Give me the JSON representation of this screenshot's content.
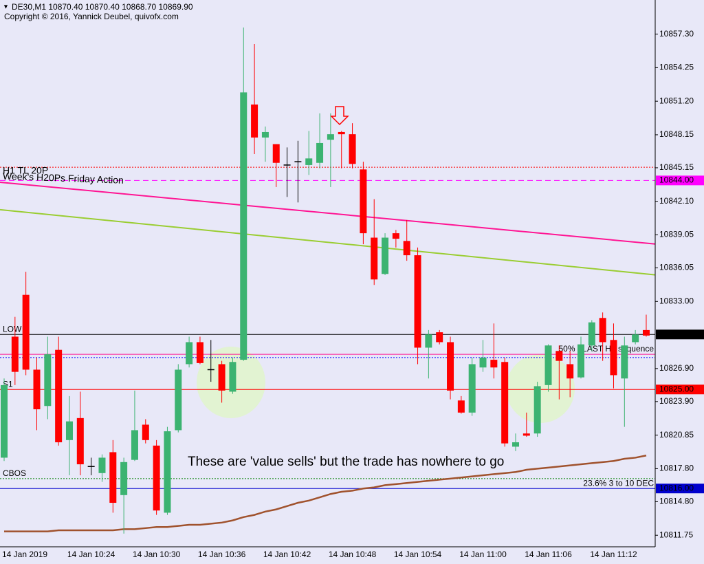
{
  "chart_data": {
    "type": "candlestick",
    "title": "DE30,M1  10870.40 10870.40 10868.70 10869.90",
    "subtitle": "Copyright © 2016, Yannick Deubel, quivofx.com",
    "annotations": [
      "These are 'value sells' but the trade has nowhere to go",
      "H1 TL 20P",
      "Week's H20Ps Friday Action"
    ],
    "background": "#e8e8f8",
    "up_color": "#3cb371",
    "down_color": "#ff0000",
    "categories": [
      "14 Jan 2019",
      null,
      null,
      null,
      null,
      null,
      null,
      null,
      "14 Jan 10:24",
      null,
      null,
      null,
      null,
      null,
      "14 Jan 10:30",
      null,
      null,
      null,
      null,
      null,
      "14 Jan 10:36",
      null,
      null,
      null,
      null,
      null,
      "14 Jan 10:42",
      null,
      null,
      null,
      null,
      null,
      "14 Jan 10:48",
      null,
      null,
      null,
      null,
      null,
      "14 Jan 10:54",
      null,
      null,
      null,
      null,
      null,
      "14 Jan 11:00",
      null,
      null,
      null,
      null,
      null,
      "14 Jan 11:06",
      null,
      null,
      null,
      null,
      null,
      "14 Jan 11:12",
      null,
      null,
      null
    ],
    "open": [
      10818.8,
      10829.8,
      10833.6,
      10826.8,
      10823.5,
      10828.6,
      10820.4,
      10822.4,
      10818.0,
      10817.4,
      10819.3,
      10815.4,
      10818.6,
      10821.8,
      10819.9,
      10813.8,
      10821.3,
      10827.3,
      10829.3,
      10826.8,
      10827.3,
      10824.8,
      10827.7,
      10850.9,
      10847.9,
      10847.3,
      10845.4,
      10845.7,
      10845.4,
      10845.6,
      10847.7,
      10848.4,
      10848.2,
      10845.0,
      10838.8,
      10835.5,
      10839.2,
      10838.5,
      10837.2,
      10828.8,
      10830.2,
      10829.3,
      10824.0,
      10822.9,
      10827.0,
      10827.7,
      10827.5,
      10819.8,
      10821.0,
      10821.0,
      10825.4,
      10828.5,
      10827.3,
      10826.1,
      10829.0,
      10831.5,
      10829.5,
      10826.0,
      10829.3,
      10830.4
    ],
    "high": [
      10826.0,
      10831.6,
      10835.7,
      10827.9,
      10829.8,
      10829.8,
      10824.4,
      10824.8,
      10818.8,
      10819.1,
      10820.4,
      10818.8,
      10824.9,
      10822.3,
      10820.4,
      10821.6,
      10827.3,
      10829.8,
      10829.8,
      10829.5,
      10827.6,
      10827.9,
      10857.9,
      10856.4,
      10848.9,
      10847.3,
      10847.0,
      10847.6,
      10848.5,
      10850.1,
      10850.1,
      10848.5,
      10849.2,
      10845.7,
      10842.3,
      10839.2,
      10839.5,
      10840.4,
      10837.9,
      10830.4,
      10830.4,
      10829.8,
      10824.4,
      10827.9,
      10829.5,
      10831.0,
      10827.9,
      10821.0,
      10822.9,
      10825.7,
      10829.1,
      10829.0,
      10828.5,
      10829.8,
      10831.3,
      10832.0,
      10831.0,
      10829.8,
      10830.4,
      10831.8
    ],
    "low": [
      10818.5,
      10825.4,
      10826.3,
      10821.3,
      10822.3,
      10819.9,
      10817.2,
      10817.2,
      10817.2,
      10816.6,
      10813.8,
      10811.9,
      10818.5,
      10820.1,
      10813.6,
      10813.6,
      10821.1,
      10827.0,
      10827.3,
      10825.7,
      10823.8,
      10824.6,
      10827.6,
      10846.4,
      10845.7,
      10843.4,
      10842.5,
      10842.0,
      10844.5,
      10845.1,
      10843.4,
      10845.1,
      10845.1,
      10838.2,
      10834.5,
      10835.4,
      10837.9,
      10836.7,
      10827.3,
      10826.0,
      10829.1,
      10824.1,
      10822.8,
      10822.6,
      10826.6,
      10826.0,
      10819.8,
      10819.4,
      10820.7,
      10820.7,
      10824.8,
      10824.1,
      10824.3,
      10826.0,
      10828.5,
      10827.6,
      10825.1,
      10821.6,
      10829.1,
      10829.8
    ],
    "close": [
      10825.4,
      10826.6,
      10826.8,
      10823.2,
      10828.2,
      10820.2,
      10822.1,
      10818.2,
      10818.0,
      10818.8,
      10814.7,
      10818.4,
      10821.3,
      10820.4,
      10814.0,
      10821.2,
      10826.8,
      10829.3,
      10827.4,
      10826.8,
      10824.9,
      10827.5,
      10852.0,
      10847.9,
      10848.4,
      10845.6,
      10845.4,
      10845.7,
      10846.0,
      10847.4,
      10848.2,
      10848.2,
      10845.5,
      10839.2,
      10835.0,
      10838.8,
      10838.7,
      10837.2,
      10828.8,
      10830.0,
      10829.3,
      10824.9,
      10822.9,
      10827.3,
      10827.9,
      10827.0,
      10820.1,
      10820.2,
      10820.8,
      10825.3,
      10829.0,
      10827.6,
      10826.0,
      10829.1,
      10831.1,
      10829.3,
      10826.3,
      10829.0,
      10830.0,
      10829.9
    ],
    "moving_average": {
      "color": "#a0522d",
      "values": [
        10812.1,
        10812.1,
        10812.1,
        10812.1,
        10812.1,
        10812.2,
        10812.2,
        10812.2,
        10812.2,
        10812.2,
        10812.2,
        10812.3,
        10812.3,
        10812.4,
        10812.5,
        10812.5,
        10812.6,
        10812.7,
        10812.7,
        10812.8,
        10812.9,
        10813.1,
        10813.4,
        10813.6,
        10813.9,
        10814.1,
        10814.4,
        10814.7,
        10814.9,
        10815.2,
        10815.5,
        10815.7,
        10815.8,
        10816.0,
        10816.1,
        10816.3,
        10816.4,
        10816.5,
        10816.6,
        10816.7,
        10816.8,
        10816.9,
        10817.0,
        10817.1,
        10817.2,
        10817.3,
        10817.4,
        10817.5,
        10817.7,
        10817.8,
        10817.9,
        10818.0,
        10818.1,
        10818.2,
        10818.3,
        10818.4,
        10818.5,
        10818.7,
        10818.8,
        10819.0
      ]
    },
    "trendlines": [
      {
        "color": "#ff1493",
        "values": [
          10843.8,
          10838.3
        ]
      },
      {
        "color": "#9acd32",
        "values": [
          10841.3,
          10835.5
        ]
      }
    ],
    "levels": [
      {
        "value": 10845.2,
        "color": "#ff0000",
        "style": "dotted"
      },
      {
        "value": 10844.0,
        "label": "10844.00",
        "color": "#ff00ff",
        "style": "dashed"
      },
      {
        "value": 10830.0,
        "label": "10830.00",
        "color": "#000000",
        "style": "solid",
        "tag": "LOW",
        "tag_side": "left"
      },
      {
        "value": 10828.2,
        "color": "#ff1493",
        "style": "solid",
        "tag": "50% - LAST H1 sequence",
        "tag_side": "right"
      },
      {
        "value": 10827.9,
        "color": "#0000ff",
        "style": "dotted"
      },
      {
        "value": 10825.0,
        "label": "10825.00",
        "color": "#ff0000",
        "style": "solid",
        "tag": "S1",
        "tag_side": "left"
      },
      {
        "value": 10816.9,
        "color": "#008000",
        "style": "dotted",
        "tag": "CBOS",
        "tag_side": "left"
      },
      {
        "value": 10816.0,
        "label": "10816.00",
        "color": "#0000cd",
        "style": "solid",
        "tag": "23.6% 3 to 10 DEC",
        "tag_side": "right"
      }
    ],
    "ylim": [
      10810.7,
      10860.4
    ],
    "yticks": [
      {
        "value": 10857.3,
        "label": "10857.30"
      },
      {
        "value": 10854.25,
        "label": "10854.25"
      },
      {
        "value": 10851.2,
        "label": "10851.20"
      },
      {
        "value": 10848.15,
        "label": "10848.15"
      },
      {
        "value": 10845.15,
        "label": "10845.15"
      },
      {
        "value": 10842.1,
        "label": "10842.10"
      },
      {
        "value": 10839.05,
        "label": "10839.05"
      },
      {
        "value": 10836.05,
        "label": "10836.05"
      },
      {
        "value": 10833,
        "label": "10833.00"
      },
      {
        "value": 10826.9,
        "label": "10826.90"
      },
      {
        "value": 10823.9,
        "label": "10823.90"
      },
      {
        "value": 10820.85,
        "label": "10820.85"
      },
      {
        "value": 10817.8,
        "label": "10817.80"
      },
      {
        "value": 10814.8,
        "label": "10814.80"
      },
      {
        "value": 10811.75,
        "label": "10811.75"
      }
    ]
  }
}
